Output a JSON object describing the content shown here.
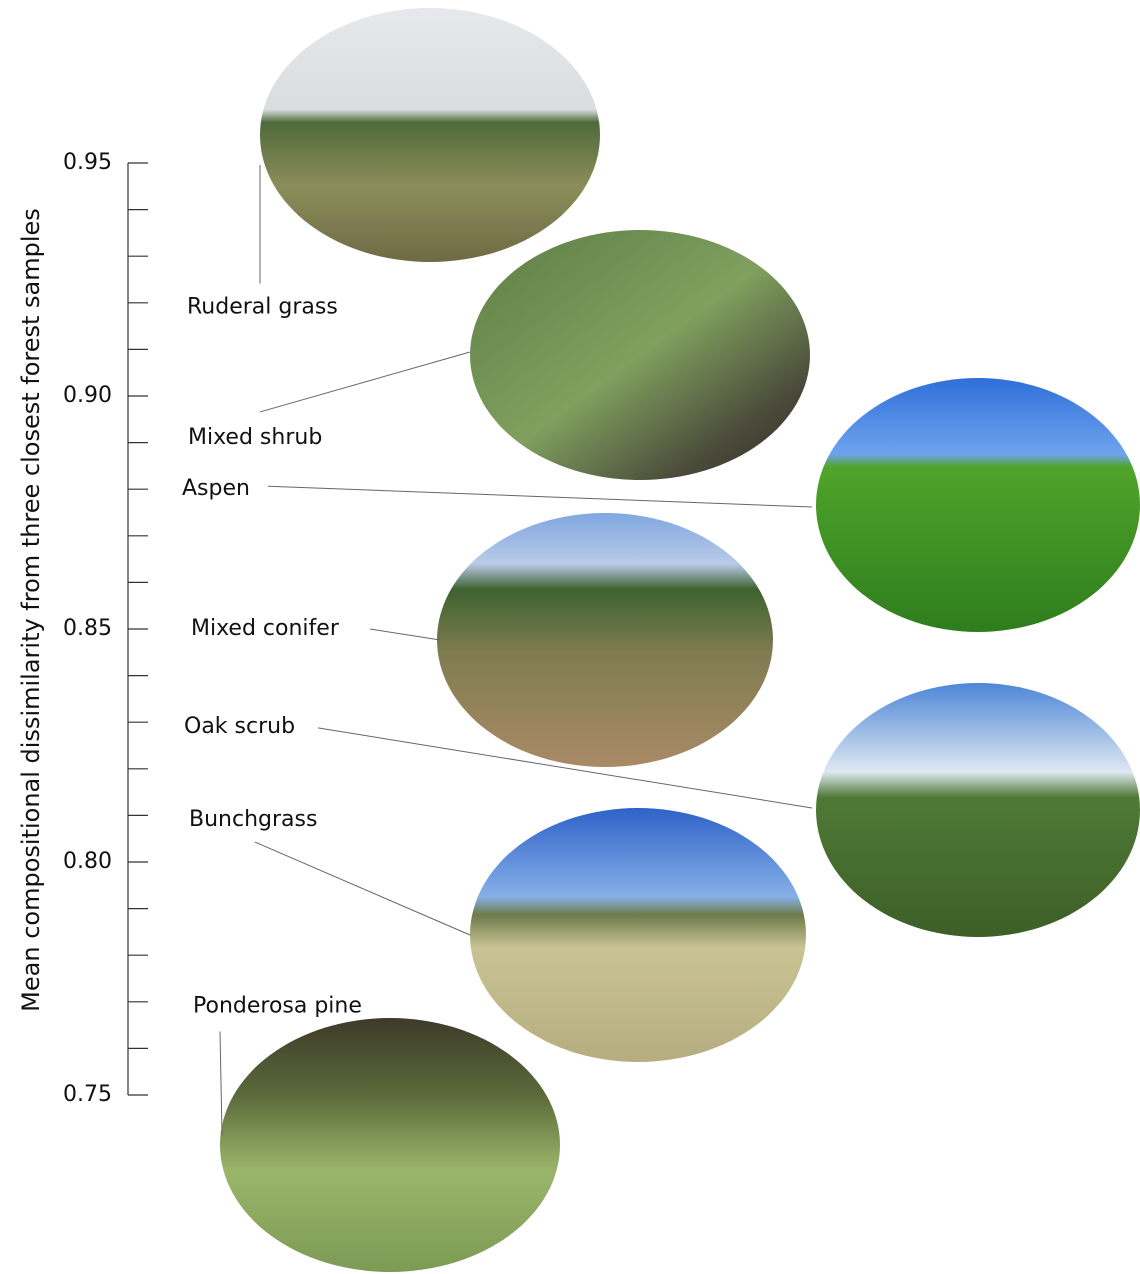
{
  "chart_data": {
    "type": "labels",
    "ylabel": "Mean compositional dissimilarity from three closest forest samples",
    "categories": [
      "Ruderal grass",
      "Mixed shrub",
      "Aspen",
      "Mixed conifer",
      "Oak scrub",
      "Bunchgrass",
      "Ponderosa pine"
    ],
    "values": [
      0.919,
      0.891,
      0.88,
      0.85,
      0.829,
      0.809,
      0.769
    ],
    "ylim": [
      0.75,
      0.95
    ],
    "yticks": [
      {
        "value": 0.75,
        "label": "0.75"
      },
      {
        "value": 0.8,
        "label": "0.80"
      },
      {
        "value": 0.85,
        "label": "0.85"
      },
      {
        "value": 0.9,
        "label": "0.90"
      },
      {
        "value": 0.95,
        "label": "0.95"
      }
    ],
    "yminorticks": [
      0.76,
      0.77,
      0.78,
      0.79,
      0.81,
      0.82,
      0.83,
      0.84,
      0.86,
      0.87,
      0.88,
      0.89,
      0.91,
      0.92,
      0.93,
      0.94
    ]
  }
}
